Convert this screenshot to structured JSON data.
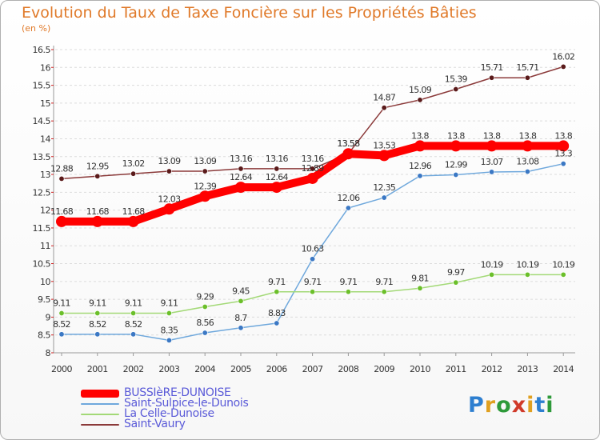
{
  "title": "Evolution du Taux de Taxe Foncière sur les Propriétés Bâties",
  "subtitle": "(en %)",
  "logo": {
    "text": "Proxiti",
    "letters": [
      {
        "ch": "P",
        "color": "#2e7fd0"
      },
      {
        "ch": "r",
        "color": "#e0a020"
      },
      {
        "ch": "o",
        "color": "#2e9a3a"
      },
      {
        "ch": "x",
        "color": "#d03a2a"
      },
      {
        "ch": "i",
        "color": "#e0a020"
      },
      {
        "ch": "t",
        "color": "#2e7fd0"
      },
      {
        "ch": "i",
        "color": "#2e9a3a"
      }
    ]
  },
  "chart_data": {
    "type": "line",
    "title": "Evolution du Taux de Taxe Foncière sur les Propriétés Bâties",
    "ylabel": "(en %)",
    "x": [
      "2000",
      "2001",
      "2002",
      "2003",
      "2004",
      "2005",
      "2006",
      "2007",
      "2008",
      "2009",
      "2010",
      "2011",
      "2012",
      "2013",
      "2014"
    ],
    "ylim": [
      8,
      16.5
    ],
    "yticks": [
      "8",
      "8.5",
      "9",
      "9.5",
      "10",
      "10.5",
      "11",
      "11.5",
      "12",
      "12.5",
      "13",
      "13.5",
      "14",
      "14.5",
      "15",
      "15.5",
      "16",
      "16.5"
    ],
    "grid": "horizontal",
    "legend_position": "bottom-left",
    "series": [
      {
        "name": "BUSSIèRE-DUNOISE",
        "color": "#ff0000",
        "values": [
          11.68,
          11.68,
          11.68,
          12.03,
          12.39,
          12.64,
          12.64,
          12.89,
          13.58,
          13.53,
          13.8,
          13.8,
          13.8,
          13.8,
          13.8
        ],
        "labels": [
          "11.68",
          "11.68",
          "11.68",
          "12.03",
          "12.39",
          "12.64",
          "12.64",
          "12.89",
          "13.58",
          "13.53",
          "13.8",
          "13.8",
          "13.8",
          "13.8",
          "13.8"
        ]
      },
      {
        "name": "Saint-Sulpice-le-Dunois",
        "color": "#6fa8dc",
        "values": [
          8.52,
          8.52,
          8.52,
          8.35,
          8.56,
          8.7,
          8.83,
          10.63,
          12.06,
          12.35,
          12.96,
          12.99,
          13.07,
          13.08,
          13.3
        ],
        "labels": [
          "8.52",
          "8.52",
          "8.52",
          "8.35",
          "8.56",
          "8.7",
          "8.83",
          "10.63",
          "12.06",
          "12.35",
          "12.96",
          "12.99",
          "13.07",
          "13.08",
          "13.3"
        ]
      },
      {
        "name": "La Celle-Dunoise",
        "color": "#a3d977",
        "values": [
          9.11,
          9.11,
          9.11,
          9.11,
          9.29,
          9.45,
          9.71,
          9.71,
          9.71,
          9.71,
          9.81,
          9.97,
          10.19,
          10.19,
          10.19
        ],
        "labels": [
          "9.11",
          "9.11",
          "9.11",
          "9.11",
          "9.29",
          "9.45",
          "9.71",
          "9.71",
          "9.71",
          "9.71",
          "9.81",
          "9.97",
          "10.19",
          "10.19",
          "10.19"
        ]
      },
      {
        "name": "Saint-Vaury",
        "color": "#8b3a3a",
        "values": [
          12.88,
          12.95,
          13.02,
          13.09,
          13.09,
          13.16,
          13.16,
          13.16,
          13.58,
          14.87,
          15.09,
          15.39,
          15.71,
          15.71,
          16.02
        ],
        "labels": [
          "12.88",
          "12.95",
          "13.02",
          "13.09",
          "13.09",
          "13.16",
          "13.16",
          "13.16",
          "13.58",
          "14.87",
          "15.09",
          "15.39",
          "15.71",
          "15.71",
          "16.02"
        ]
      }
    ]
  }
}
